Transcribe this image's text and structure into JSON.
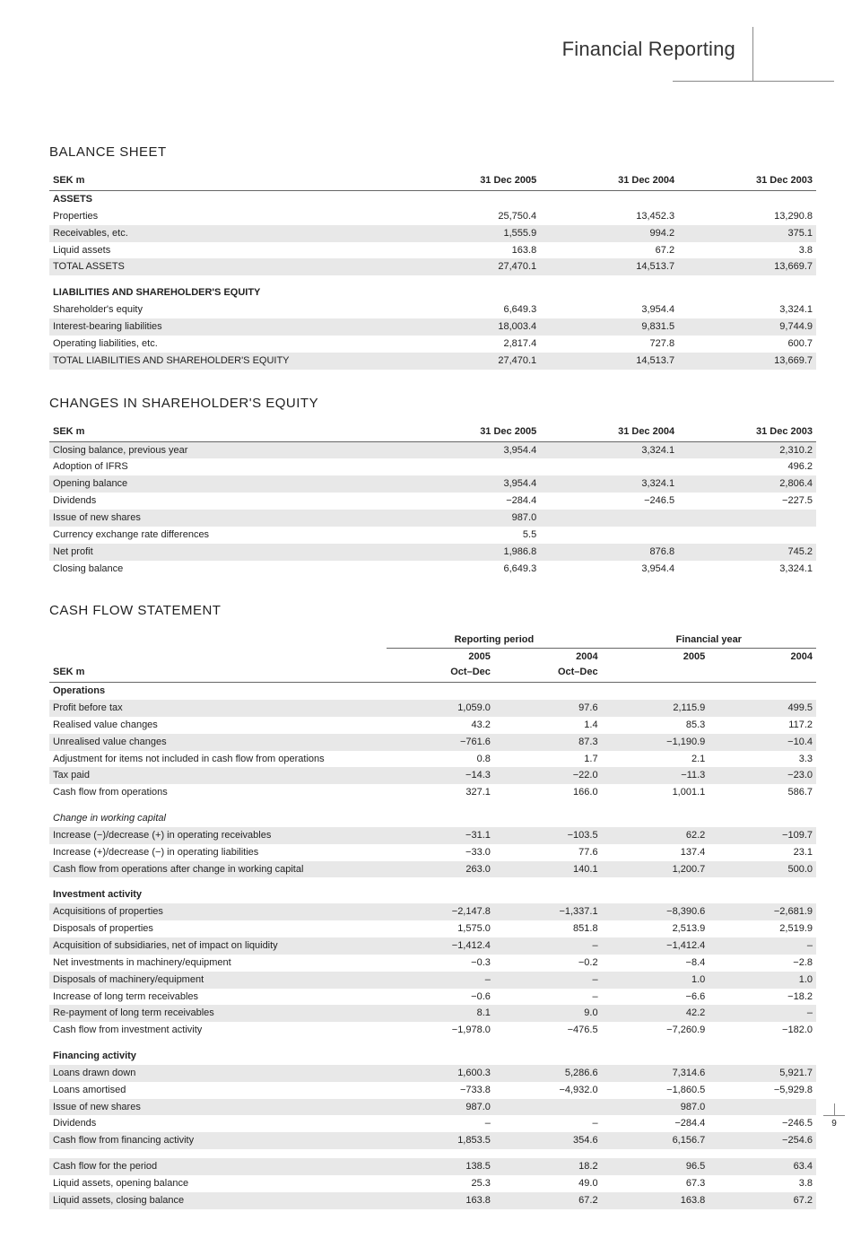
{
  "header": {
    "title": "Financial Reporting"
  },
  "page_number": "9",
  "balance_sheet": {
    "title": "BALANCE SHEET",
    "hdr": [
      "SEK m",
      "31 Dec 2005",
      "31 Dec 2004",
      "31 Dec 2003"
    ],
    "assets_label": "ASSETS",
    "rows1": [
      {
        "l": "Properties",
        "v": [
          "25,750.4",
          "13,452.3",
          "13,290.8"
        ],
        "s": false
      },
      {
        "l": "Receivables, etc.",
        "v": [
          "1,555.9",
          "994.2",
          "375.1"
        ],
        "s": true
      },
      {
        "l": "Liquid assets",
        "v": [
          "163.8",
          "67.2",
          "3.8"
        ],
        "s": false
      }
    ],
    "total_assets": {
      "l": "TOTAL ASSETS",
      "v": [
        "27,470.1",
        "14,513.7",
        "13,669.7"
      ],
      "s": true,
      "b": true
    },
    "liab_label": "LIABILITIES AND SHAREHOLDER'S EQUITY",
    "rows2": [
      {
        "l": "Shareholder's equity",
        "v": [
          "6,649.3",
          "3,954.4",
          "3,324.1"
        ],
        "s": false
      },
      {
        "l": "Interest-bearing liabilities",
        "v": [
          "18,003.4",
          "9,831.5",
          "9,744.9"
        ],
        "s": true
      },
      {
        "l": "Operating liabilities, etc.",
        "v": [
          "2,817.4",
          "727.8",
          "600.7"
        ],
        "s": false
      }
    ],
    "total_liab": {
      "l": "TOTAL LIABILITIES AND SHAREHOLDER'S EQUITY",
      "v": [
        "27,470.1",
        "14,513.7",
        "13,669.7"
      ],
      "s": true,
      "b": true
    }
  },
  "equity_changes": {
    "title": "CHANGES IN SHAREHOLDER'S EQUITY",
    "hdr": [
      "SEK m",
      "31 Dec 2005",
      "31 Dec 2004",
      "31 Dec 2003"
    ],
    "rows": [
      {
        "l": "Closing balance, previous year",
        "v": [
          "3,954.4",
          "3,324.1",
          "2,310.2"
        ],
        "s": true,
        "b": true
      },
      {
        "l": "Adoption of IFRS",
        "v": [
          "",
          "",
          "496.2"
        ],
        "s": false
      },
      {
        "l": "Opening balance",
        "v": [
          "3,954.4",
          "3,324.1",
          "2,806.4"
        ],
        "s": true,
        "b": true
      },
      {
        "l": "Dividends",
        "v": [
          "−284.4",
          "−246.5",
          "−227.5"
        ],
        "s": false
      },
      {
        "l": "Issue of new shares",
        "v": [
          "987.0",
          "",
          ""
        ],
        "s": true
      },
      {
        "l": "Currency exchange rate differences",
        "v": [
          "5.5",
          "",
          ""
        ],
        "s": false
      },
      {
        "l": "Net profit",
        "v": [
          "1,986.8",
          "876.8",
          "745.2"
        ],
        "s": true
      },
      {
        "l": "Closing balance",
        "v": [
          "6,649.3",
          "3,954.4",
          "3,324.1"
        ],
        "s": false,
        "b": true
      }
    ]
  },
  "cash_flow": {
    "title": "CASH FLOW STATEMENT",
    "super": [
      "",
      "Reporting period",
      "Financial year"
    ],
    "hdr1": [
      "",
      "2005",
      "2004",
      "2005",
      "2004"
    ],
    "hdr2": [
      "SEK m",
      "Oct–Dec",
      "Oct–Dec",
      "",
      ""
    ],
    "sections": [
      {
        "label": "Operations",
        "b": true,
        "it": false,
        "rows": [
          {
            "l": "Profit before tax",
            "v": [
              "1,059.0",
              "97.6",
              "2,115.9",
              "499.5"
            ],
            "s": true
          },
          {
            "l": "Realised value changes",
            "v": [
              "43.2",
              "1.4",
              "85.3",
              "117.2"
            ],
            "s": false
          },
          {
            "l": "Unrealised value changes",
            "v": [
              "−761.6",
              "87.3",
              "−1,190.9",
              "−10.4"
            ],
            "s": true
          },
          {
            "l": "Adjustment for items not included in cash flow from operations",
            "v": [
              "0.8",
              "1.7",
              "2.1",
              "3.3"
            ],
            "s": false
          },
          {
            "l": "Tax paid",
            "v": [
              "−14.3",
              "−22.0",
              "−11.3",
              "−23.0"
            ],
            "s": true
          },
          {
            "l": "Cash flow from operations",
            "v": [
              "327.1",
              "166.0",
              "1,001.1",
              "586.7"
            ],
            "s": false,
            "b": true
          }
        ]
      },
      {
        "label": "Change in working capital",
        "b": false,
        "it": true,
        "rows": [
          {
            "l": "Increase (−)/decrease (+) in operating receivables",
            "v": [
              "−31.1",
              "−103.5",
              "62.2",
              "−109.7"
            ],
            "s": true
          },
          {
            "l": "Increase (+)/decrease (−) in operating liabilities",
            "v": [
              "−33.0",
              "77.6",
              "137.4",
              "23.1"
            ],
            "s": false
          },
          {
            "l": "Cash flow from operations after change in working capital",
            "v": [
              "263.0",
              "140.1",
              "1,200.7",
              "500.0"
            ],
            "s": true,
            "b": true
          }
        ]
      },
      {
        "label": "Investment activity",
        "b": true,
        "it": false,
        "rows": [
          {
            "l": "Acquisitions of properties",
            "v": [
              "−2,147.8",
              "−1,337.1",
              "−8,390.6",
              "−2,681.9"
            ],
            "s": true
          },
          {
            "l": "Disposals of properties",
            "v": [
              "1,575.0",
              "851.8",
              "2,513.9",
              "2,519.9"
            ],
            "s": false
          },
          {
            "l": "Acquisition of subsidiaries, net of impact on liquidity",
            "v": [
              "−1,412.4",
              "–",
              "−1,412.4",
              "–"
            ],
            "s": true
          },
          {
            "l": "Net investments in machinery/equipment",
            "v": [
              "−0.3",
              "−0.2",
              "−8.4",
              "−2.8"
            ],
            "s": false
          },
          {
            "l": "Disposals of machinery/equipment",
            "v": [
              "–",
              "–",
              "1.0",
              "1.0"
            ],
            "s": true
          },
          {
            "l": "Increase of long term receivables",
            "v": [
              "−0.6",
              "–",
              "−6.6",
              "−18.2"
            ],
            "s": false
          },
          {
            "l": "Re-payment of long term receivables",
            "v": [
              "8.1",
              "9.0",
              "42.2",
              "–"
            ],
            "s": true,
            "b": true
          },
          {
            "l": "Cash flow from investment activity",
            "v": [
              "−1,978.0",
              "−476.5",
              "−7,260.9",
              "−182.0"
            ],
            "s": false,
            "b": true
          }
        ]
      },
      {
        "label": "Financing activity",
        "b": true,
        "it": false,
        "rows": [
          {
            "l": "Loans drawn down",
            "v": [
              "1,600.3",
              "5,286.6",
              "7,314.6",
              "5,921.7"
            ],
            "s": true
          },
          {
            "l": "Loans amortised",
            "v": [
              "−733.8",
              "−4,932.0",
              "−1,860.5",
              "−5,929.8"
            ],
            "s": false
          },
          {
            "l": "Issue of new shares",
            "v": [
              "987.0",
              "",
              "987.0",
              ""
            ],
            "s": true
          },
          {
            "l": "Dividends",
            "v": [
              "–",
              "–",
              "−284.4",
              "−246.5"
            ],
            "s": false
          },
          {
            "l": "Cash flow from financing activity",
            "v": [
              "1,853.5",
              "354.6",
              "6,156.7",
              "−254.6"
            ],
            "s": true,
            "b": true
          }
        ]
      },
      {
        "label": "",
        "b": false,
        "it": false,
        "rows": [
          {
            "l": "Cash flow for the period",
            "v": [
              "138.5",
              "18.2",
              "96.5",
              "63.4"
            ],
            "s": true,
            "b": true
          },
          {
            "l": "Liquid assets, opening balance",
            "v": [
              "25.3",
              "49.0",
              "67.3",
              "3.8"
            ],
            "s": false
          },
          {
            "l": "Liquid assets, closing balance",
            "v": [
              "163.8",
              "67.2",
              "163.8",
              "67.2"
            ],
            "s": true,
            "b": true
          }
        ]
      }
    ]
  }
}
